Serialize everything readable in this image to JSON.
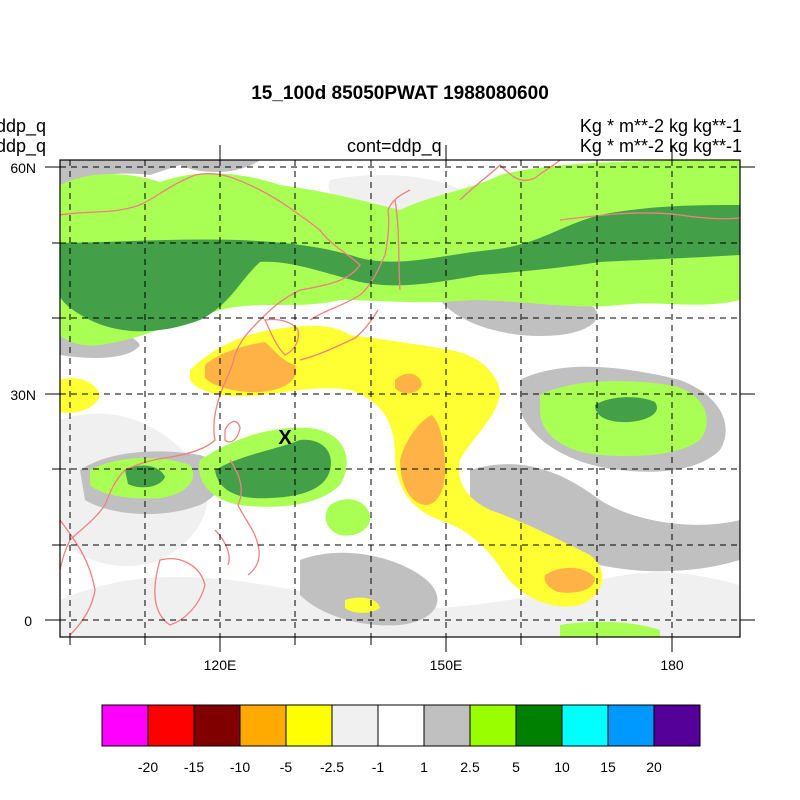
{
  "title": "15_100d 85050PWAT  1988080600",
  "left_titles": [
    "ddp_q",
    "ddp_q"
  ],
  "right_titles": [
    "Kg  * m**-2 kg kg**-1",
    "Kg  * m**-2 kg kg**-1"
  ],
  "center_title": "cont=ddp_q",
  "marker": "X",
  "lat_labels": [
    "60N",
    "30N",
    "0"
  ],
  "lon_labels": [
    "120E",
    "150E",
    "180"
  ],
  "colorbar": {
    "labels": [
      "-20",
      "-15",
      "-10",
      "-5",
      "-2.5",
      "-1",
      "1",
      "2.5",
      "5",
      "10",
      "15",
      "20"
    ],
    "colors": [
      "#ff00ff",
      "#ff0000",
      "#800000",
      "#ffaa00",
      "#ffff00",
      "#f0f0f0",
      "#ffffff",
      "#c0c0c0",
      "#99ff00",
      "#008000",
      "#00ffff",
      "#0099ff",
      "#550099"
    ]
  },
  "chart_data": {
    "type": "heatmap",
    "title": "15_100d 85050PWAT  1988080600",
    "xlabel": "",
    "ylabel": "",
    "x_ticks": [
      "120E",
      "150E",
      "180"
    ],
    "y_ticks": [
      "60N",
      "30N",
      "0"
    ],
    "xlim": [
      100,
      187
    ],
    "ylim": [
      -3,
      61
    ],
    "grid": true,
    "contour_levels": [
      -20,
      -15,
      -10,
      -5,
      -2.5,
      -1,
      1,
      2.5,
      5,
      10,
      15,
      20
    ]
  }
}
